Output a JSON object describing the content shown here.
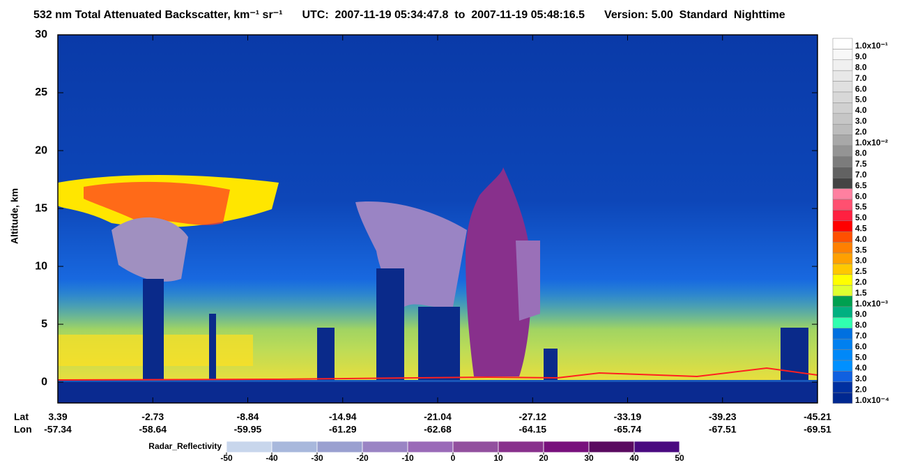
{
  "chart_data": {
    "type": "curtain",
    "title": "532 nm Total Attenuated Backscatter, km⁻¹ sr⁻¹",
    "time_range": "UTC:  2007-11-19 05:34:47.8  to  2007-11-19 05:48:16.5",
    "version": "Version: 5.00  Standard  Nighttime",
    "y_label": "Altitude, km",
    "ylim": [
      -1.8,
      30
    ],
    "yticks": [
      0,
      5,
      10,
      15,
      20,
      25,
      30
    ],
    "x_row_labels": [
      "Lat",
      "Lon"
    ],
    "lat": [
      3.39,
      -2.73,
      -8.84,
      -14.94,
      -21.04,
      -27.12,
      -33.19,
      -39.23,
      -45.21
    ],
    "lon": [
      -57.34,
      -58.64,
      -59.95,
      -61.29,
      -62.68,
      -64.15,
      -65.74,
      -67.51,
      -69.51
    ],
    "colorbar": [
      {
        "label": "1.0x10⁻¹",
        "color": "#ffffff"
      },
      {
        "label": "9.0",
        "color": "#f8f8f8"
      },
      {
        "label": "8.0",
        "color": "#f0f0f0"
      },
      {
        "label": "7.0",
        "color": "#e8e8e8"
      },
      {
        "label": "6.0",
        "color": "#e0e0e0"
      },
      {
        "label": "5.0",
        "color": "#d8d8d8"
      },
      {
        "label": "4.0",
        "color": "#d0d0d0"
      },
      {
        "label": "3.0",
        "color": "#c6c6c6"
      },
      {
        "label": "2.0",
        "color": "#bcbcbc"
      },
      {
        "label": "1.0x10⁻²",
        "color": "#a8a8a8"
      },
      {
        "label": "8.0",
        "color": "#949494"
      },
      {
        "label": "7.5",
        "color": "#7c7c7c"
      },
      {
        "label": "7.0",
        "color": "#626262"
      },
      {
        "label": "6.5",
        "color": "#444444"
      },
      {
        "label": "6.0",
        "color": "#ff80a0"
      },
      {
        "label": "5.5",
        "color": "#ff5070"
      },
      {
        "label": "5.0",
        "color": "#ff2040"
      },
      {
        "label": "4.5",
        "color": "#ff0000"
      },
      {
        "label": "4.0",
        "color": "#ff5000"
      },
      {
        "label": "3.5",
        "color": "#ff8000"
      },
      {
        "label": "3.0",
        "color": "#ffa000"
      },
      {
        "label": "2.5",
        "color": "#ffc800"
      },
      {
        "label": "2.0",
        "color": "#ffff00"
      },
      {
        "label": "1.5",
        "color": "#e0ff30"
      },
      {
        "label": "1.0x10⁻³",
        "color": "#00a050"
      },
      {
        "label": "9.0",
        "color": "#00b080"
      },
      {
        "label": "8.0",
        "color": "#30ffb0"
      },
      {
        "label": "7.0",
        "color": "#0070e0"
      },
      {
        "label": "6.0",
        "color": "#0080f0"
      },
      {
        "label": "5.0",
        "color": "#0088f8"
      },
      {
        "label": "4.0",
        "color": "#0090ff"
      },
      {
        "label": "3.0",
        "color": "#1060e0"
      },
      {
        "label": "2.0",
        "color": "#0030a0"
      },
      {
        "label": "1.0x10⁻⁴",
        "color": "#002890"
      }
    ],
    "radar_colorbar": {
      "label": "Radar_Reflectivity",
      "lim": [
        -50,
        50
      ],
      "ticks": [
        -50,
        -40,
        -30,
        -20,
        -10,
        0,
        10,
        20,
        30,
        40,
        50
      ],
      "colors": [
        "#c8d6ec",
        "#a8b8dc",
        "#9aa0d0",
        "#9a84c4",
        "#9a6ab8",
        "#92509e",
        "#88308c",
        "#78107c",
        "#5a0a60",
        "#4a0a80"
      ]
    }
  }
}
